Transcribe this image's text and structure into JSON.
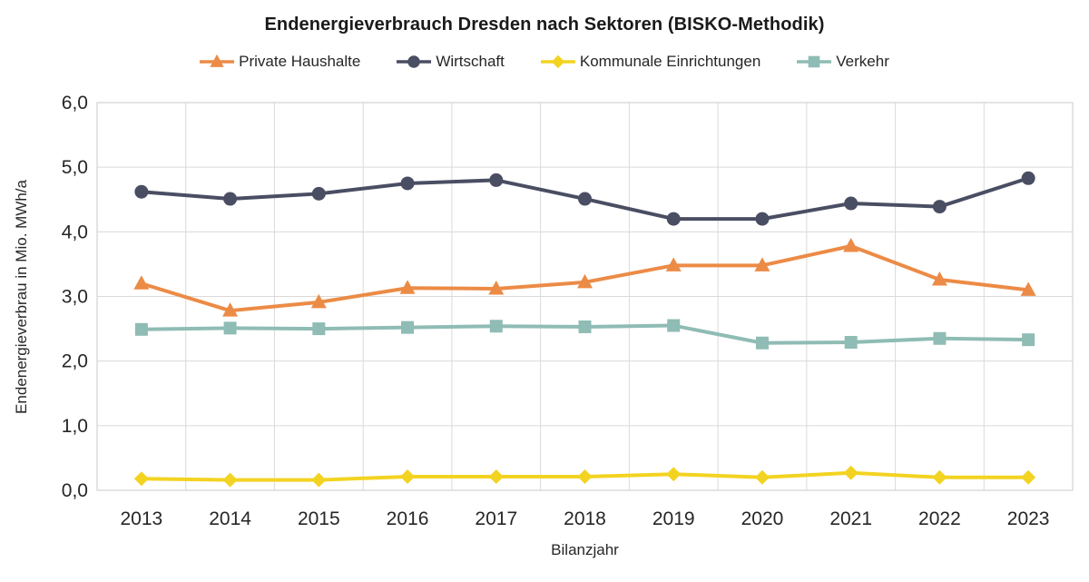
{
  "chart_data": {
    "type": "line",
    "title": "Endenergieverbrauch Dresden nach Sektoren (BISKO-Methodik)",
    "xlabel": "Bilanzjahr",
    "ylabel": "Endenergieverbrau in Mio. MWh/a",
    "categories": [
      "2013",
      "2014",
      "2015",
      "2016",
      "2017",
      "2018",
      "2019",
      "2020",
      "2021",
      "2022",
      "2023"
    ],
    "ylim": [
      0,
      6
    ],
    "ytick_values": [
      0,
      1,
      2,
      3,
      4,
      5,
      6
    ],
    "ytick_labels": [
      "0,0",
      "1,0",
      "2,0",
      "3,0",
      "4,0",
      "5,0",
      "6,0"
    ],
    "grid": true,
    "legend_position": "top",
    "series": [
      {
        "name": "Private Haushalte",
        "marker": "triangle",
        "color": "#EC8B46",
        "values": [
          3.2,
          2.78,
          2.91,
          3.13,
          3.12,
          3.22,
          3.48,
          3.48,
          3.78,
          3.26,
          3.1
        ]
      },
      {
        "name": "Wirtschaft",
        "marker": "circle",
        "color": "#4A4E63",
        "values": [
          4.62,
          4.51,
          4.59,
          4.75,
          4.8,
          4.51,
          4.2,
          4.2,
          4.44,
          4.39,
          4.83
        ]
      },
      {
        "name": "Kommunale Einrichtungen",
        "marker": "diamond",
        "color": "#F3D321",
        "values": [
          0.18,
          0.16,
          0.16,
          0.21,
          0.21,
          0.21,
          0.25,
          0.2,
          0.27,
          0.2,
          0.2
        ]
      },
      {
        "name": "Verkehr",
        "marker": "square",
        "color": "#8FBCB4",
        "values": [
          2.49,
          2.51,
          2.5,
          2.52,
          2.54,
          2.53,
          2.55,
          2.28,
          2.29,
          2.35,
          2.33
        ]
      }
    ]
  },
  "colors": {
    "grid": "#DADADA",
    "plot_border": "#D2D2D2",
    "tick_text": "#262626",
    "title_text": "#1a1a1a"
  }
}
